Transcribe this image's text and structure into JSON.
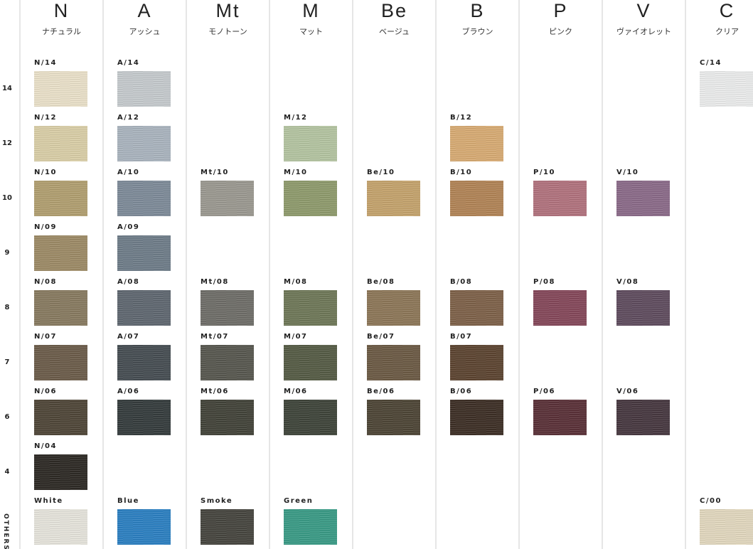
{
  "rows": [
    "14",
    "12",
    "10",
    "9",
    "8",
    "7",
    "6",
    "4",
    "OTHERS"
  ],
  "columns": [
    {
      "letter": "N",
      "name": "ナチュラル",
      "cells": [
        {
          "label": "N/14",
          "color": "#e8dfc8"
        },
        {
          "label": "N/12",
          "color": "#d8cda6"
        },
        {
          "label": "N/10",
          "color": "#b09e70"
        },
        {
          "label": "N/09",
          "color": "#9c8a66"
        },
        {
          "label": "N/08",
          "color": "#877a60"
        },
        {
          "label": "N/07",
          "color": "#6b5c4a"
        },
        {
          "label": "N/06",
          "color": "#4f4638"
        },
        {
          "label": "N/04",
          "color": "#2e2a25"
        },
        {
          "label": "White",
          "color": "#e4e2da"
        }
      ]
    },
    {
      "letter": "A",
      "name": "アッシュ",
      "cells": [
        {
          "label": "A/14",
          "color": "#c4c9cc"
        },
        {
          "label": "A/12",
          "color": "#a9b3bd"
        },
        {
          "label": "A/10",
          "color": "#7d8a98"
        },
        {
          "label": "A/09",
          "color": "#6e7c88"
        },
        {
          "label": "A/08",
          "color": "#5f6770"
        },
        {
          "label": "A/07",
          "color": "#464d52"
        },
        {
          "label": "A/06",
          "color": "#353c3d"
        },
        null,
        {
          "label": "Blue",
          "color": "#2c7fc0"
        }
      ]
    },
    {
      "letter": "Mt",
      "name": "モノトーン",
      "cells": [
        null,
        null,
        {
          "label": "Mt/10",
          "color": "#9a9890"
        },
        null,
        {
          "label": "Mt/08",
          "color": "#6e6d68"
        },
        {
          "label": "Mt/07",
          "color": "#57574f"
        },
        {
          "label": "Mt/06",
          "color": "#424339"
        },
        null,
        {
          "label": "Smoke",
          "color": "#46453f"
        }
      ]
    },
    {
      "letter": "M",
      "name": "マット",
      "cells": [
        null,
        {
          "label": "M/12",
          "color": "#b3c3a0"
        },
        {
          "label": "M/10",
          "color": "#8e9a6c"
        },
        null,
        {
          "label": "M/08",
          "color": "#6e7758"
        },
        {
          "label": "M/07",
          "color": "#555b45"
        },
        {
          "label": "M/06",
          "color": "#3f443a"
        },
        null,
        {
          "label": "Green",
          "color": "#3a9a85"
        }
      ]
    },
    {
      "letter": "Be",
      "name": "ベージュ",
      "cells": [
        null,
        null,
        {
          "label": "Be/10",
          "color": "#c3a26c"
        },
        null,
        {
          "label": "Be/08",
          "color": "#8c7658"
        },
        {
          "label": "Be/07",
          "color": "#6b5a44"
        },
        {
          "label": "Be/06",
          "color": "#4d4536"
        },
        null,
        null
      ]
    },
    {
      "letter": "B",
      "name": "ブラウン",
      "cells": [
        null,
        {
          "label": "B/12",
          "color": "#d6aa73"
        },
        {
          "label": "B/10",
          "color": "#b08356"
        },
        null,
        {
          "label": "B/08",
          "color": "#7d6149"
        },
        {
          "label": "B/07",
          "color": "#5c4431"
        },
        {
          "label": "B/06",
          "color": "#3d2f26"
        },
        null,
        null
      ]
    },
    {
      "letter": "P",
      "name": "ピンク",
      "cells": [
        null,
        null,
        {
          "label": "P/10",
          "color": "#b0727d"
        },
        null,
        {
          "label": "P/08",
          "color": "#84485a"
        },
        null,
        {
          "label": "P/06",
          "color": "#5a3138"
        },
        null,
        null
      ]
    },
    {
      "letter": "V",
      "name": "ヴァイオレット",
      "cells": [
        null,
        null,
        {
          "label": "V/10",
          "color": "#8a6a88"
        },
        null,
        {
          "label": "V/08",
          "color": "#5f4c5e"
        },
        null,
        {
          "label": "V/06",
          "color": "#473840"
        },
        null,
        null
      ]
    },
    {
      "letter": "C",
      "name": "クリア",
      "cells": [
        {
          "label": "C/14",
          "color": "#e9eaea"
        },
        null,
        null,
        null,
        null,
        null,
        null,
        null,
        {
          "label": "C/00",
          "color": "#e0d6bd"
        }
      ]
    }
  ]
}
